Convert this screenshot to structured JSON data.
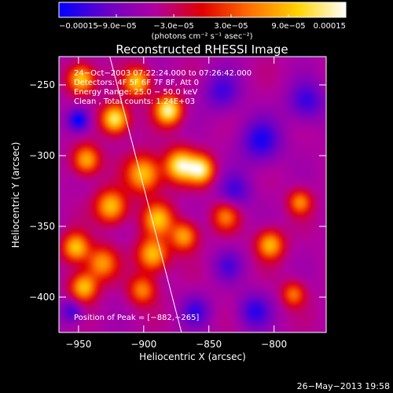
{
  "chart_data": {
    "type": "heatmap",
    "title": "Reconstructed RHESSI Image",
    "xlabel": "Heliocentric X (arcsec)",
    "ylabel": "Heliocentric Y (arcsec)",
    "xlim": [
      -965,
      -760
    ],
    "ylim": [
      -425,
      -230
    ],
    "x_ticks": [
      -950,
      -900,
      -850,
      -800
    ],
    "x_tick_labels": [
      "−950",
      "−900",
      "−850",
      "−800"
    ],
    "y_ticks": [
      -250,
      -300,
      -350,
      -400
    ],
    "y_tick_labels": [
      "−250",
      "−300",
      "−350",
      "−400"
    ],
    "colorbar": {
      "range": [
        -0.00015,
        0.00015
      ],
      "ticks": [
        -0.00015,
        -9e-05,
        -3e-05,
        3e-05,
        9e-05,
        0.00015
      ],
      "tick_labels": [
        "−0.00015",
        "−9.0e−05",
        "−3.0e−05",
        "3.0e−05",
        "9.0e−05",
        "0.00015"
      ],
      "unit_label": "(photons cm⁻² s⁻¹ asec⁻²)",
      "colors": [
        "#0000ff",
        "#6a00c8",
        "#b000a0",
        "#e00000",
        "#ff7000",
        "#ffd400",
        "#ffffff"
      ]
    },
    "info_lines": [
      "24−Oct−2003 07:22:24.000 to 07:26:42.000",
      "Detectors: 4F 5F 6F 7F 8F, Att 0",
      "Energy Range: 25.0 − 50.0 keV",
      "Clean ,  Total counts: 1.24E+03"
    ],
    "peak_label": "Position of Peak = [−882,−265]",
    "peak": [
      -882,
      -265
    ],
    "limb_line": [
      [
        -926,
        -230
      ],
      [
        -871,
        -425
      ]
    ],
    "sources": [
      {
        "x": -922,
        "y": -274,
        "amp": 1.0,
        "w": 7
      },
      {
        "x": -881,
        "y": -268,
        "amp": 1.0,
        "w": 7
      },
      {
        "x": -948,
        "y": -246,
        "amp": 0.85,
        "w": 7
      },
      {
        "x": -905,
        "y": -248,
        "amp": 0.8,
        "w": 7
      },
      {
        "x": -944,
        "y": -303,
        "amp": 0.75,
        "w": 7
      },
      {
        "x": -925,
        "y": -336,
        "amp": 0.8,
        "w": 8
      },
      {
        "x": -900,
        "y": -313,
        "amp": 0.8,
        "w": 9
      },
      {
        "x": -872,
        "y": -307,
        "amp": 0.95,
        "w": 8
      },
      {
        "x": -856,
        "y": -310,
        "amp": 0.9,
        "w": 7
      },
      {
        "x": -889,
        "y": -345,
        "amp": 0.75,
        "w": 8
      },
      {
        "x": -893,
        "y": -370,
        "amp": 0.8,
        "w": 8
      },
      {
        "x": -869,
        "y": -357,
        "amp": 0.7,
        "w": 7
      },
      {
        "x": -837,
        "y": -343,
        "amp": 0.55,
        "w": 7
      },
      {
        "x": -932,
        "y": -376,
        "amp": 0.65,
        "w": 8
      },
      {
        "x": -952,
        "y": -365,
        "amp": 0.8,
        "w": 7
      },
      {
        "x": -946,
        "y": -393,
        "amp": 0.8,
        "w": 7
      },
      {
        "x": -901,
        "y": -395,
        "amp": 0.6,
        "w": 7
      },
      {
        "x": -803,
        "y": -363,
        "amp": 0.75,
        "w": 7
      },
      {
        "x": -780,
        "y": -333,
        "amp": 0.6,
        "w": 6
      },
      {
        "x": -785,
        "y": -398,
        "amp": 0.55,
        "w": 6
      },
      {
        "x": -810,
        "y": -290,
        "amp": -0.45,
        "w": 11
      },
      {
        "x": -775,
        "y": -262,
        "amp": -0.4,
        "w": 10
      },
      {
        "x": -840,
        "y": -255,
        "amp": -0.35,
        "w": 10
      },
      {
        "x": -950,
        "y": -275,
        "amp": -0.6,
        "w": 6
      },
      {
        "x": -815,
        "y": -410,
        "amp": -0.4,
        "w": 9
      },
      {
        "x": -860,
        "y": -410,
        "amp": -0.35,
        "w": 8
      },
      {
        "x": -835,
        "y": -378,
        "amp": -0.3,
        "w": 8
      },
      {
        "x": -830,
        "y": -325,
        "amp": -0.35,
        "w": 9
      },
      {
        "x": -955,
        "y": -410,
        "amp": -0.4,
        "w": 6
      }
    ]
  },
  "footer": {
    "timestamp": "26−May−2013 19:58"
  }
}
